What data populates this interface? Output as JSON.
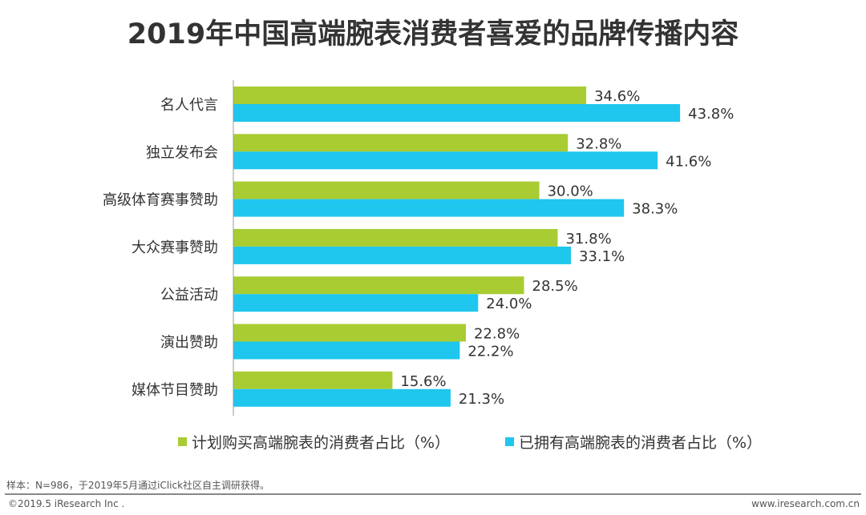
{
  "chart_data": {
    "type": "bar",
    "orientation": "horizontal",
    "title": "2019年中国高端腕表消费者喜爱的品牌传播内容",
    "categories": [
      "名人代言",
      "独立发布会",
      "高级体育赛事赞助",
      "大众赛事赞助",
      "公益活动",
      "演出赞助",
      "媒体节目赞助"
    ],
    "series": [
      {
        "name": "计划购买高端腕表的消费者占比（%）",
        "color": "#a8cc32",
        "values": [
          34.6,
          32.8,
          30.0,
          31.8,
          28.5,
          22.8,
          15.6
        ]
      },
      {
        "name": "已拥有高端腕表的消费者占比（%）",
        "color": "#1fc6ee",
        "values": [
          43.8,
          41.6,
          38.3,
          33.1,
          24.0,
          22.2,
          21.3
        ]
      }
    ],
    "value_format": "percent_1dp",
    "xlim": [
      0,
      50
    ],
    "grid": false,
    "legend_placement": "bottom"
  },
  "footer": {
    "note": "样本：N=986，于2019年5月通过iClick社区自主调研获得。",
    "copyright": "©2019.5 iResearch Inc .",
    "website": "www.iresearch.com.cn"
  }
}
